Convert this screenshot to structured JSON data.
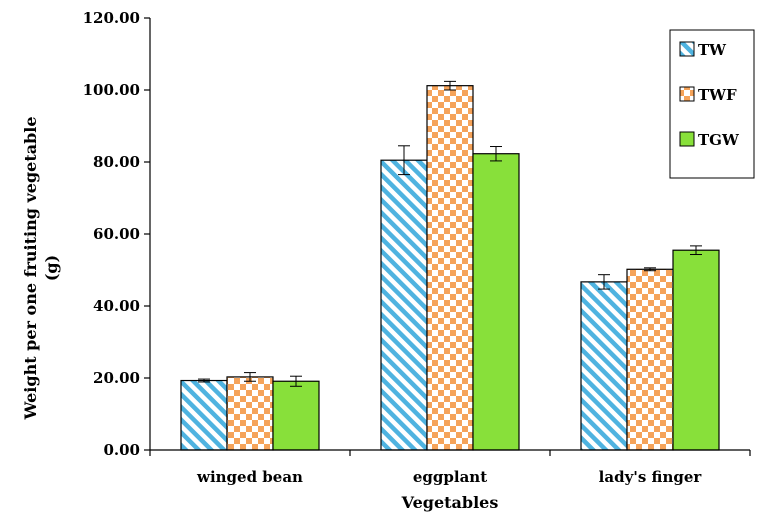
{
  "chart_data": {
    "type": "bar",
    "title": "",
    "xlabel": "Vegetables",
    "ylabel_line1": "Weight per one fruiting vegetable",
    "ylabel_line2": "(g)",
    "categories": [
      "winged bean",
      "eggplant",
      "lady's finger"
    ],
    "yticks": [
      "0.00",
      "20.00",
      "40.00",
      "60.00",
      "80.00",
      "100.00",
      "120.00"
    ],
    "ylim": [
      0,
      120
    ],
    "grid": false,
    "legend_position": "top-right",
    "series": [
      {
        "name": "TW",
        "pattern": "diagonal-stripes",
        "colors": [
          "#4fb3e0",
          "#ffffff"
        ],
        "values": [
          19.3,
          80.5,
          46.7
        ],
        "errors": [
          0.4,
          4.0,
          2.0
        ]
      },
      {
        "name": "TWF",
        "pattern": "checker",
        "colors": [
          "#f5a35a",
          "#ffffff"
        ],
        "values": [
          20.3,
          101.2,
          50.2
        ],
        "errors": [
          1.2,
          1.2,
          0.4
        ]
      },
      {
        "name": "TGW",
        "pattern": "solid",
        "colors": [
          "#88e03a"
        ],
        "values": [
          19.1,
          82.3,
          55.5
        ],
        "errors": [
          1.4,
          2.0,
          1.2
        ]
      }
    ]
  }
}
